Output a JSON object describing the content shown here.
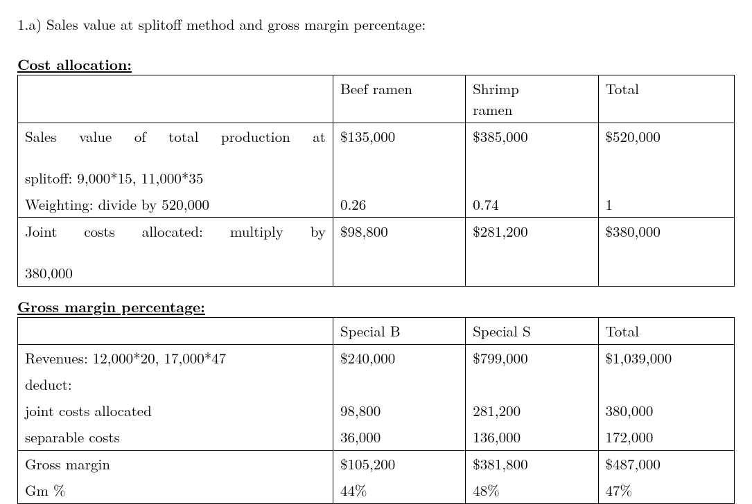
{
  "title": "1.a) Sales value at splitoff method and gross margin percentage:",
  "section1": {
    "heading": "Cost allocation:",
    "headers": {
      "c1": "",
      "c2": "Beef ramen",
      "c3_line1": "Shrimp",
      "c3_line2": "ramen",
      "c4": "Total"
    },
    "row1": {
      "label_line1": "Sales value of total production at",
      "label_line2": "splitoff: 9,000*15, 11,000*35",
      "v1": "$135,000",
      "v2": "$385,000",
      "v3": "$520,000"
    },
    "row2": {
      "label": "Weighting: divide by 520,000",
      "v1": "0.26",
      "v2": "0.74",
      "v3": "1"
    },
    "row3": {
      "label_line1": "Joint costs allocated: multiply by",
      "label_line2": "380,000",
      "v1": "$98,800",
      "v2": "$281,200",
      "v3": "$380,000"
    }
  },
  "section2": {
    "heading": "Gross margin percentage:",
    "headers": {
      "c1": "",
      "c2": "Special B",
      "c3": "Special S",
      "c4": "Total"
    },
    "row1": {
      "label": "Revenues: 12,000*20, 17,000*47",
      "v1": "$240,000",
      "v2": "$799,000",
      "v3": "$1,039,000"
    },
    "row2": {
      "label": "deduct:",
      "v1": "",
      "v2": "",
      "v3": ""
    },
    "row3": {
      "label": "joint costs allocated",
      "v1": "98,800",
      "v2": "281,200",
      "v3": "380,000"
    },
    "row4": {
      "label": "separable costs",
      "v1": "36,000",
      "v2": "136,000",
      "v3": "172,000"
    },
    "row5": {
      "label": "Gross margin",
      "v1": "$105,200",
      "v2": "$381,800",
      "v3": "$487,000"
    },
    "row6": {
      "label": "Gm %",
      "v1": "44%",
      "v2": "48%",
      "v3": "47%"
    }
  }
}
